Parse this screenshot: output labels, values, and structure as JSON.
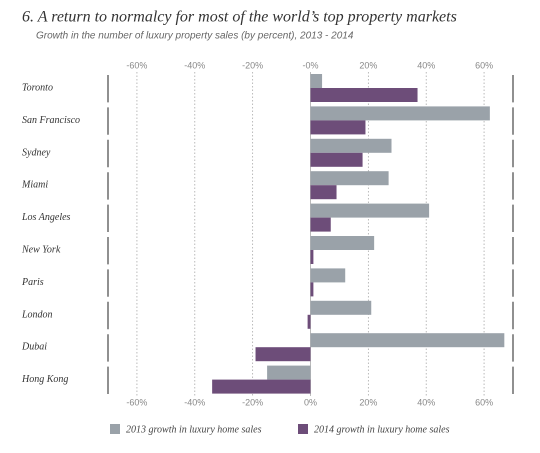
{
  "chart_data": {
    "type": "bar",
    "orientation": "horizontal",
    "title": "6. A return to normalcy for most of the world’s top property markets",
    "subtitle": "Growth in the number of luxury property sales (by percent), 2013 - 2014",
    "categories": [
      "Toronto",
      "San Francisco",
      "Sydney",
      "Miami",
      "Los Angeles",
      "New York",
      "Paris",
      "London",
      "Dubai",
      "Hong Kong"
    ],
    "series": [
      {
        "name": "2013 growth in luxury home sales",
        "color": "#9aa2a9",
        "values": [
          4,
          62,
          28,
          27,
          41,
          22,
          12,
          21,
          67,
          -15
        ]
      },
      {
        "name": "2014 growth in luxury home sales",
        "color": "#6d4d79",
        "values": [
          37,
          19,
          18,
          9,
          7,
          1,
          1,
          -1,
          -19,
          -34
        ]
      }
    ],
    "xlim": [
      -70,
      70
    ],
    "xticks": [
      {
        "value": -60,
        "label": "-60%"
      },
      {
        "value": -40,
        "label": "-40%"
      },
      {
        "value": -20,
        "label": "-20%"
      },
      {
        "value": 0,
        "label": "0%"
      },
      {
        "value": 20,
        "label": "20%"
      },
      {
        "value": 40,
        "label": "40%"
      },
      {
        "value": 60,
        "label": "60%"
      }
    ],
    "xticks_top": [
      {
        "value": -60,
        "label": "-60%"
      },
      {
        "value": -40,
        "label": "-40%"
      },
      {
        "value": -20,
        "label": "-20%"
      },
      {
        "value": 0,
        "label": "-0%"
      },
      {
        "value": 20,
        "label": "20%"
      },
      {
        "value": 40,
        "label": "40%"
      },
      {
        "value": 60,
        "label": "60%"
      }
    ],
    "grid": true
  }
}
